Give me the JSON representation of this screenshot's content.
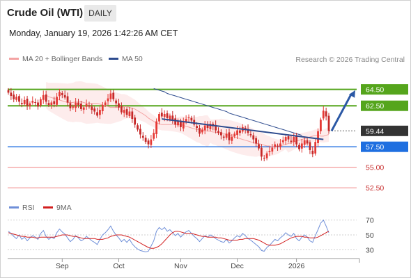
{
  "header": {
    "instrument": "Crude Oil (WTI)",
    "timeframe": "DAILY",
    "datetime": "Monday, January 19, 2026 1:42:26 AM CET"
  },
  "legend": {
    "ma20": "MA 20 + Bollinger Bands",
    "ma50": "MA 50",
    "credit": "Research © 2026 Trading Central",
    "rsi": "RSI",
    "rsi_ma": "9MA"
  },
  "colors": {
    "bull": "#e53935",
    "bear": "#c62828",
    "resistance": "#55a51c",
    "support": "#1f6fe0",
    "support_weak": "#f08080",
    "current": "#333333",
    "ma20": "#f4a3a3",
    "ma50": "#2d4b8e",
    "bollinger": "#fdecec",
    "rsi": "#6f8fd8",
    "rsi_ma": "#d21f1f",
    "arrow": "#2b58a5"
  },
  "chart_data": [
    {
      "type": "candlestick",
      "x_axis": {
        "ticks": [
          "Sep",
          "Oct",
          "Nov",
          "Dec",
          "2026"
        ]
      },
      "ylim": [
        51.5,
        66.5
      ],
      "price_levels": [
        {
          "label": "64.50",
          "value": 64.5,
          "kind": "resistance"
        },
        {
          "label": "62.50",
          "value": 62.5,
          "kind": "resistance"
        },
        {
          "label": "59.44",
          "value": 59.44,
          "kind": "current"
        },
        {
          "label": "57.50",
          "value": 57.5,
          "kind": "support"
        },
        {
          "label": "55.00",
          "value": 55.0,
          "kind": "support-weak"
        },
        {
          "label": "52.50",
          "value": 52.5,
          "kind": "support-weak"
        }
      ],
      "closes": [
        64.1,
        63.7,
        63.3,
        63.6,
        63.0,
        62.7,
        63.2,
        62.5,
        62.8,
        63.1,
        62.9,
        62.4,
        63.3,
        63.8,
        63.0,
        62.6,
        62.9,
        62.7,
        63.6,
        64.2,
        63.8,
        63.5,
        62.9,
        62.2,
        62.4,
        62.9,
        62.6,
        62.1,
        62.3,
        62.7,
        62.4,
        62.0,
        61.8,
        61.3,
        62.0,
        62.6,
        62.9,
        63.4,
        64.0,
        63.3,
        62.8,
        62.3,
        61.7,
        62.0,
        61.4,
        61.8,
        60.9,
        60.2,
        59.6,
        59.0,
        58.6,
        58.1,
        57.8,
        58.4,
        59.2,
        60.6,
        61.5,
        61.2,
        61.5,
        61.0,
        61.3,
        60.8,
        60.2,
        60.6,
        59.9,
        60.5,
        60.9,
        61.1,
        60.7,
        60.2,
        59.8,
        59.1,
        59.6,
        60.1,
        59.8,
        60.3,
        60.0,
        59.5,
        59.2,
        58.9,
        58.6,
        59.1,
        58.3,
        58.7,
        59.1,
        59.5,
        59.2,
        59.9,
        59.6,
        59.2,
        58.9,
        58.4,
        57.9,
        57.3,
        56.3,
        56.1,
        56.7,
        57.0,
        57.4,
        57.8,
        57.5,
        57.9,
        58.3,
        58.7,
        58.4,
        58.1,
        58.7,
        57.8,
        57.2,
        57.9,
        58.3,
        57.9,
        57.1,
        56.6,
        58.1,
        59.4,
        60.8,
        61.9,
        61.2,
        59.44
      ],
      "ma20": [
        63.8,
        63.6,
        63.5,
        63.4,
        63.3,
        63.2,
        63.1,
        63.0,
        62.9,
        62.9,
        62.9,
        63.0,
        63.0,
        63.0,
        62.9,
        62.8,
        62.8,
        62.8,
        62.8,
        62.8,
        62.7,
        62.6,
        62.5,
        62.4,
        62.3,
        62.3,
        62.3,
        62.3,
        62.3,
        62.4,
        62.4,
        62.3,
        62.2,
        62.1,
        61.9,
        61.7,
        61.5,
        61.3,
        61.0,
        60.8,
        60.6,
        60.4,
        60.3,
        60.2,
        60.2,
        60.2,
        60.2,
        60.2,
        60.2,
        60.2,
        60.2,
        60.1,
        60.0,
        59.9,
        59.8,
        59.7,
        59.6,
        59.6,
        59.5,
        59.5,
        59.4,
        59.4,
        59.3,
        59.3,
        59.2,
        59.2,
        59.1,
        59.0,
        58.9,
        58.8,
        58.7,
        58.6,
        58.5,
        58.4,
        58.3,
        58.2,
        58.1,
        58.0,
        57.9,
        57.9,
        57.8,
        57.7,
        57.6,
        57.6,
        57.5,
        57.5,
        57.5,
        57.6,
        57.7,
        57.8,
        57.9,
        58.0,
        58.1,
        58.2,
        58.3,
        58.4,
        58.5,
        58.6,
        58.7,
        58.8,
        58.9,
        58.9,
        58.8,
        58.8,
        58.9,
        59.0
      ],
      "ma50": [
        64.6,
        64.5,
        64.4,
        64.3,
        64.2,
        64.0,
        63.9,
        63.8,
        63.7,
        63.6,
        63.5,
        63.4,
        63.3,
        63.2,
        63.1,
        63.0,
        62.9,
        62.8,
        62.7,
        62.6,
        62.5,
        62.4,
        62.3,
        62.2,
        62.1,
        62.0,
        61.9,
        61.8,
        61.6,
        61.5,
        61.4,
        61.3,
        61.2,
        61.1,
        61.0,
        60.9,
        60.8,
        60.7,
        60.6,
        60.5,
        60.4,
        60.3,
        60.2,
        60.1,
        60.0,
        59.9,
        59.8,
        59.7,
        59.6,
        59.5,
        59.4,
        59.3,
        59.2,
        59.1,
        59.0,
        58.9
      ],
      "trend_line": {
        "from": 60.9,
        "to": 58.4
      },
      "projection_arrow": {
        "from": 59.44,
        "to": 64.4
      }
    },
    {
      "type": "line",
      "title": "RSI",
      "ylim": [
        20,
        80
      ],
      "y_ticks": [
        "70",
        "50",
        "30"
      ],
      "series": [
        {
          "name": "RSI",
          "values": [
            55,
            52,
            48,
            45,
            50,
            44,
            47,
            42,
            46,
            49,
            47,
            44,
            52,
            56,
            48,
            44,
            47,
            45,
            53,
            58,
            54,
            51,
            46,
            41,
            44,
            49,
            46,
            42,
            44,
            48,
            45,
            42,
            40,
            37,
            44,
            50,
            53,
            57,
            62,
            55,
            50,
            46,
            41,
            44,
            40,
            44,
            38,
            34,
            31,
            29,
            28,
            27,
            28,
            35,
            42,
            55,
            60,
            57,
            60,
            55,
            57,
            53,
            49,
            52,
            47,
            51,
            54,
            56,
            52,
            48,
            45,
            41,
            45,
            49,
            47,
            50,
            48,
            45,
            43,
            41,
            40,
            44,
            39,
            42,
            46,
            49,
            47,
            52,
            49,
            45,
            43,
            40,
            37,
            34,
            29,
            28,
            33,
            36,
            40,
            44,
            42,
            46,
            49,
            53,
            50,
            48,
            52,
            45,
            42,
            47,
            50,
            47,
            42,
            40,
            49,
            57,
            66,
            70,
            62,
            53
          ]
        },
        {
          "name": "9MA",
          "values": [
            53,
            52,
            51,
            50,
            49,
            48,
            48,
            47,
            47,
            47,
            46,
            46,
            47,
            47,
            47,
            47,
            47,
            47,
            48,
            49,
            50,
            50,
            50,
            49,
            48,
            48,
            47,
            46,
            45,
            45,
            45,
            45,
            45,
            44,
            44,
            44,
            45,
            46,
            48,
            49,
            50,
            50,
            50,
            49,
            48,
            47,
            45,
            43,
            41,
            39,
            37,
            35,
            33,
            32,
            32,
            33,
            35,
            38,
            42,
            46,
            50,
            53,
            55,
            55,
            54,
            53,
            52,
            52,
            52,
            51,
            50,
            49,
            48,
            48,
            47,
            47,
            47,
            47,
            46,
            46,
            45,
            44,
            43,
            43,
            43,
            43,
            44,
            44,
            45,
            45,
            45,
            45,
            44,
            43,
            41,
            39,
            37,
            36,
            36,
            36,
            37,
            38,
            40,
            42,
            44,
            46,
            47,
            48,
            48,
            48,
            47,
            47,
            46,
            46,
            46,
            47,
            49,
            51,
            53,
            55
          ]
        }
      ]
    }
  ]
}
